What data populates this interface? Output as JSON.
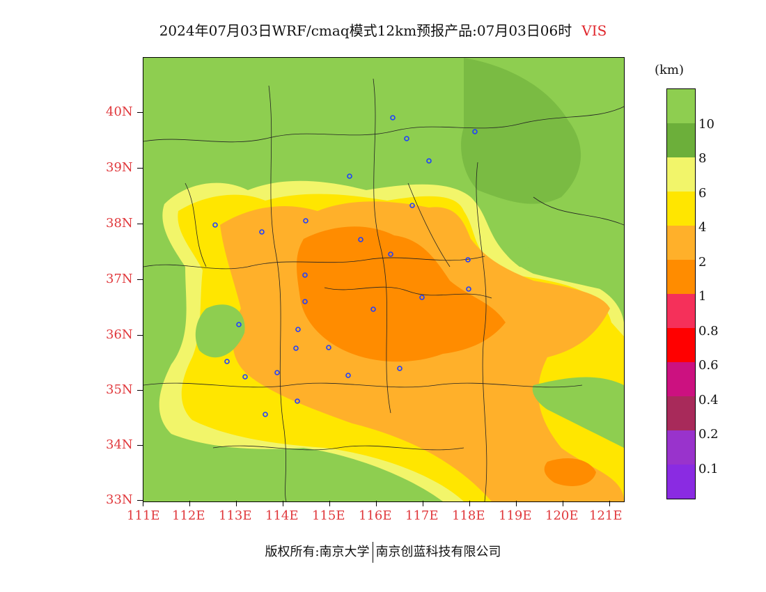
{
  "title": {
    "main": "2024年07月03日WRF/cmaq模式12km预报产品:07月03日06时",
    "variable": "VIS"
  },
  "y_axis": [
    "40N",
    "39N",
    "38N",
    "37N",
    "36N",
    "35N",
    "34N",
    "33N"
  ],
  "x_axis": [
    "111E",
    "112E",
    "113E",
    "114E",
    "115E",
    "116E",
    "117E",
    "118E",
    "119E",
    "120E",
    "121E"
  ],
  "colorbar": {
    "unit": "(km)",
    "colors": [
      "#8ece50",
      "#6caf3a",
      "#f2f56a",
      "#ffe600",
      "#ffb02a",
      "#ff8c00",
      "#f5305a",
      "#ff0000",
      "#cc1180",
      "#a82a5a",
      "#9933cc",
      "#8a2be2"
    ],
    "labels": [
      "10",
      "8",
      "6",
      "4",
      "2",
      "1",
      "0.8",
      "0.6",
      "0.4",
      "0.2",
      "0.1"
    ]
  },
  "cities": [
    "c1",
    "c2",
    "c3",
    "c4",
    "c5",
    "c6",
    "c7",
    "c8",
    "c9",
    "c10",
    "c11",
    "c12",
    "c13",
    "c14",
    "c15",
    "c16",
    "c17",
    "c18",
    "c19",
    "c20",
    "c21",
    "c22",
    "c23",
    "c24",
    "c25",
    "c26",
    "c27",
    "c28"
  ],
  "footer": {
    "left": "版权所有:南京大学",
    "right": "南京创蓝科技有限公司"
  }
}
